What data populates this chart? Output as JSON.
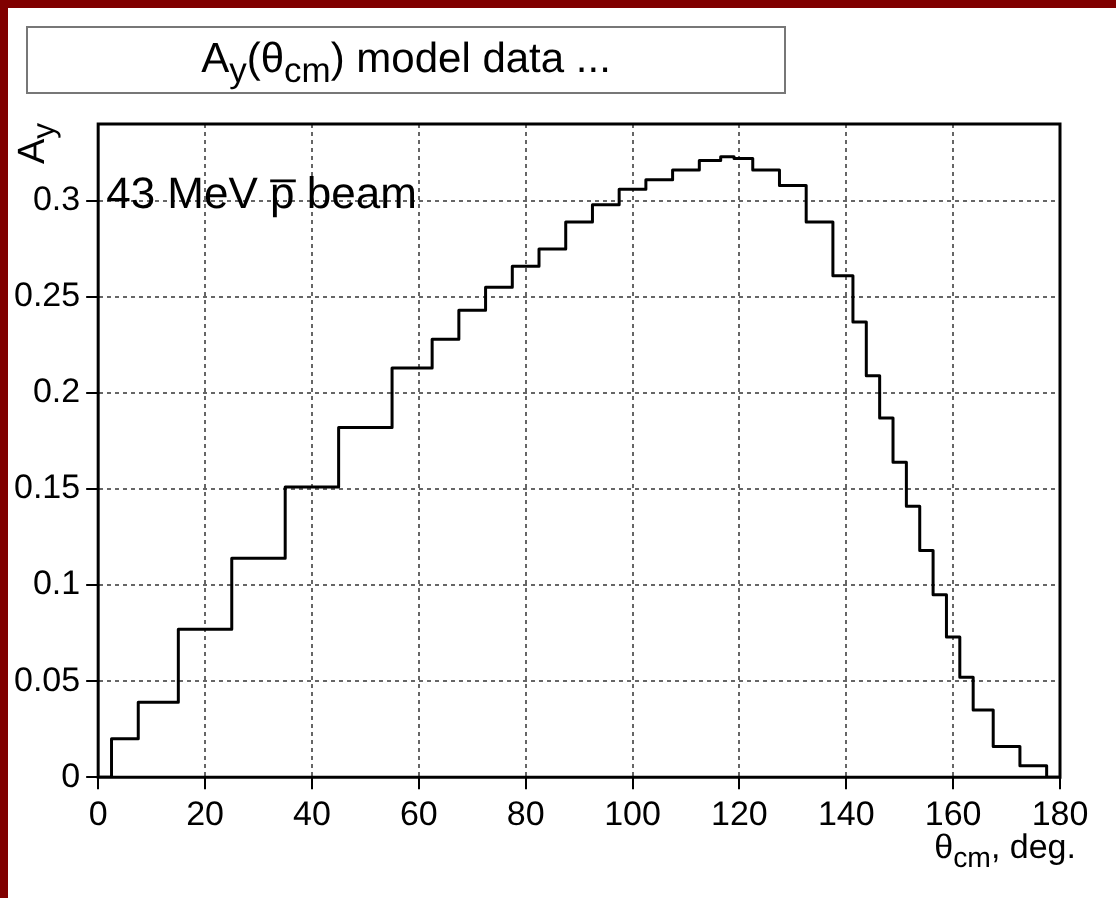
{
  "chart_data": {
    "type": "step",
    "title": "A$_{y}$(θ$_{cm}$) model data ...",
    "xlabel": "θ$_{cm}$,  deg.",
    "ylabel": "A$_{y}$",
    "annotations": [
      "43 MeV p̅ beam"
    ],
    "x": [
      0,
      5,
      10,
      20,
      30,
      40,
      50,
      60,
      65,
      70,
      75,
      80,
      85,
      90,
      95,
      100,
      105,
      110,
      115,
      118,
      120,
      125,
      130,
      135,
      140,
      142.5,
      145,
      147.5,
      150,
      152.5,
      155,
      157.5,
      160,
      162.5,
      165,
      170,
      175,
      180
    ],
    "series": [
      {
        "color": "#000000",
        "values": [
          0,
          0.02,
          0.039,
          0.077,
          0.114,
          0.151,
          0.182,
          0.213,
          0.228,
          0.243,
          0.255,
          0.266,
          0.275,
          0.289,
          0.298,
          0.306,
          0.311,
          0.316,
          0.321,
          0.323,
          0.322,
          0.316,
          0.308,
          0.289,
          0.261,
          0.237,
          0.209,
          0.187,
          0.164,
          0.141,
          0.118,
          0.095,
          0.073,
          0.052,
          0.035,
          0.016,
          0.006,
          0
        ]
      }
    ],
    "xlim": [
      0,
      180
    ],
    "xticks": [
      0,
      20,
      40,
      60,
      80,
      100,
      120,
      140,
      160,
      180
    ],
    "ylim": [
      0,
      0.34
    ],
    "yticks": [
      0,
      0.05,
      0.1,
      0.15,
      0.2,
      0.25,
      0.3
    ],
    "grid": true,
    "legend": false
  }
}
